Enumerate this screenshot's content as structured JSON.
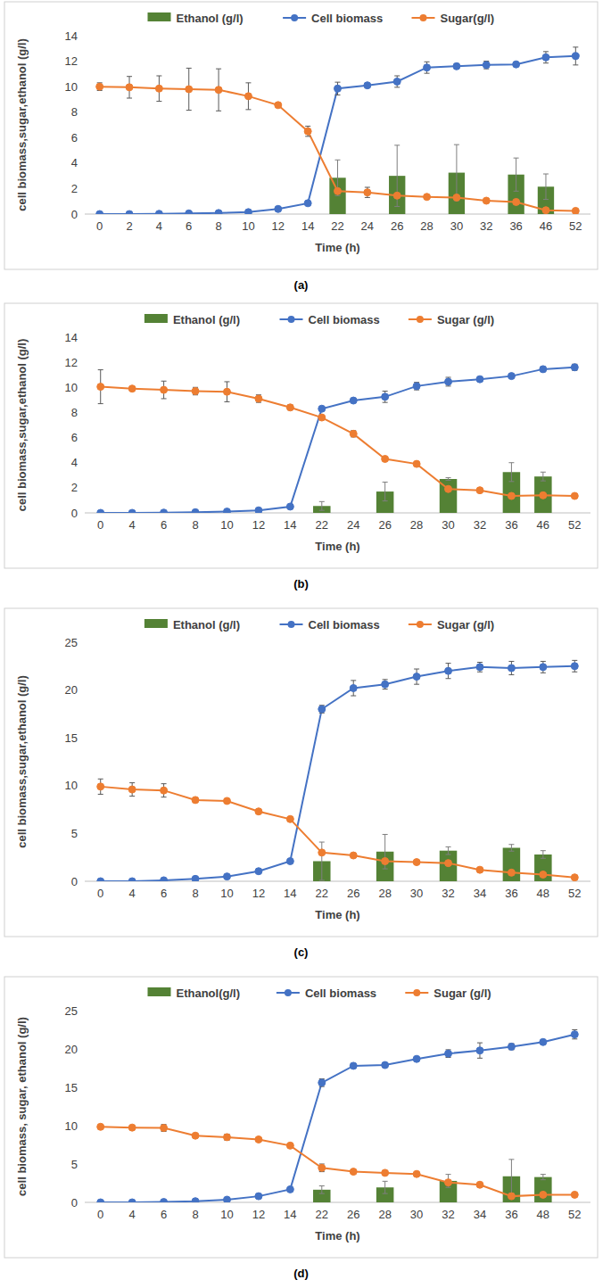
{
  "chart_data": [
    {
      "type": "line",
      "title": "(a)",
      "xlabel": "Time (h)",
      "ylabel": "cell biomass,sugar,ethanol (g/l)",
      "categories": [
        "0",
        "2",
        "4",
        "6",
        "8",
        "10",
        "12",
        "14",
        "22",
        "24",
        "26",
        "28",
        "30",
        "32",
        "36",
        "46",
        "52"
      ],
      "ylim": [
        0,
        14
      ],
      "yticks": [
        0,
        2,
        4,
        6,
        8,
        10,
        12,
        14
      ],
      "grid": false,
      "legend": "top",
      "series": [
        {
          "name": "Ethanol (g/l)",
          "type": "bar",
          "color": "#548235",
          "values": [
            null,
            null,
            null,
            null,
            null,
            null,
            null,
            null,
            2.85,
            null,
            3.0,
            null,
            3.25,
            null,
            3.1,
            2.15,
            null
          ],
          "errors": [
            null,
            null,
            null,
            null,
            null,
            null,
            null,
            null,
            1.4,
            null,
            2.4,
            null,
            2.2,
            null,
            1.3,
            1.0,
            null
          ]
        },
        {
          "name": "Cell biomass",
          "type": "line",
          "marker": "circle",
          "color": "#4472c4",
          "values": [
            0,
            0,
            0.02,
            0.05,
            0.08,
            0.15,
            0.4,
            0.85,
            9.85,
            10.1,
            10.4,
            11.5,
            11.6,
            11.7,
            11.75,
            12.3,
            12.4
          ],
          "errors": [
            0,
            0,
            0,
            0,
            0,
            0,
            0,
            0.1,
            0.5,
            0.1,
            0.45,
            0.45,
            0.2,
            0.3,
            0.1,
            0.45,
            0.7
          ]
        },
        {
          "name": "Sugar(g/l)",
          "type": "line",
          "marker": "circle",
          "color": "#ed7d31",
          "values": [
            10,
            9.95,
            9.85,
            9.8,
            9.75,
            9.25,
            8.55,
            6.5,
            1.8,
            1.7,
            1.45,
            1.35,
            1.3,
            1.05,
            0.95,
            0.3,
            0.25
          ],
          "errors": [
            0.3,
            0.85,
            1.0,
            1.65,
            1.65,
            1.05,
            0.1,
            0.4,
            0.1,
            0.4,
            0.1,
            0.1,
            0.1,
            0.1,
            0.1,
            0.1,
            0.1
          ]
        }
      ]
    },
    {
      "type": "line",
      "title": "(b)",
      "xlabel": "Time (h)",
      "ylabel": "cell biomass,sugar,ethanol  (g/l)",
      "categories": [
        "0",
        "4",
        "6",
        "8",
        "10",
        "12",
        "14",
        "22",
        "24",
        "26",
        "28",
        "30",
        "32",
        "36",
        "46",
        "52"
      ],
      "ylim": [
        0,
        14
      ],
      "yticks": [
        0,
        2,
        4,
        6,
        8,
        10,
        12,
        14
      ],
      "grid": false,
      "legend": "top",
      "series": [
        {
          "name": "Ethanol (g/l)",
          "type": "bar",
          "color": "#548235",
          "values": [
            null,
            null,
            null,
            null,
            null,
            null,
            null,
            0.55,
            null,
            1.7,
            null,
            2.7,
            null,
            3.25,
            2.9,
            null
          ],
          "errors": [
            null,
            null,
            null,
            null,
            null,
            null,
            null,
            0.35,
            null,
            0.75,
            null,
            0.1,
            null,
            0.75,
            0.35,
            null
          ]
        },
        {
          "name": "Cell biomass",
          "type": "line",
          "marker": "circle",
          "color": "#4472c4",
          "values": [
            0,
            0,
            0.02,
            0.05,
            0.1,
            0.2,
            0.5,
            8.3,
            8.95,
            9.25,
            10.1,
            10.45,
            10.65,
            10.9,
            11.45,
            11.6
          ],
          "errors": [
            0,
            0,
            0,
            0,
            0,
            0,
            0,
            0.15,
            0.1,
            0.45,
            0.3,
            0.35,
            0.1,
            0.1,
            0.2,
            0.25
          ]
        },
        {
          "name": "Sugar (g/l)",
          "type": "line",
          "marker": "circle",
          "color": "#ed7d31",
          "values": [
            10.05,
            9.9,
            9.8,
            9.7,
            9.65,
            9.1,
            8.4,
            7.6,
            6.3,
            4.3,
            3.9,
            1.9,
            1.8,
            1.35,
            1.4,
            1.35
          ],
          "errors": [
            1.35,
            0.1,
            0.7,
            0.3,
            0.8,
            0.3,
            0.2,
            0.1,
            0.25,
            0.1,
            0.1,
            0.1,
            0.1,
            0.1,
            0.1,
            0.1
          ]
        }
      ]
    },
    {
      "type": "line",
      "title": "(c)",
      "xlabel": "Time (h)",
      "ylabel": "cell biomass,sugar,ethanol   (g/l)",
      "categories": [
        "0",
        "4",
        "6",
        "8",
        "10",
        "12",
        "14",
        "22",
        "26",
        "28",
        "30",
        "32",
        "34",
        "36",
        "48",
        "52"
      ],
      "ylim": [
        0,
        25
      ],
      "yticks": [
        0,
        5,
        10,
        15,
        20,
        25
      ],
      "grid": false,
      "legend": "top",
      "series": [
        {
          "name": "Ethanol (g/l)",
          "type": "bar",
          "color": "#548235",
          "values": [
            null,
            null,
            null,
            null,
            null,
            null,
            null,
            2.1,
            null,
            3.1,
            null,
            3.2,
            null,
            3.5,
            2.8,
            null
          ],
          "errors": [
            null,
            null,
            null,
            null,
            null,
            null,
            null,
            2.0,
            null,
            1.8,
            null,
            0.4,
            null,
            0.35,
            0.4,
            null
          ]
        },
        {
          "name": "Cell biomass",
          "type": "line",
          "marker": "circle",
          "color": "#4472c4",
          "values": [
            0,
            0,
            0.1,
            0.25,
            0.5,
            1.05,
            2.1,
            18,
            20.2,
            20.6,
            21.4,
            22,
            22.4,
            22.3,
            22.4,
            22.5
          ],
          "errors": [
            0,
            0,
            0,
            0,
            0,
            0,
            0.1,
            0.4,
            0.8,
            0.5,
            0.8,
            0.8,
            0.5,
            0.7,
            0.6,
            0.6
          ]
        },
        {
          "name": "Sugar (g/l)",
          "type": "line",
          "marker": "circle",
          "color": "#ed7d31",
          "values": [
            9.9,
            9.6,
            9.5,
            8.5,
            8.4,
            7.3,
            6.5,
            3,
            2.7,
            2.1,
            2.0,
            1.9,
            1.2,
            0.9,
            0.7,
            0.4
          ],
          "errors": [
            0.8,
            0.7,
            0.7,
            0.2,
            0.2,
            0.2,
            0.2,
            0.2,
            0.2,
            0.2,
            0.2,
            0.2,
            0.2,
            0.2,
            0.2,
            0.2
          ]
        }
      ]
    },
    {
      "type": "line",
      "title": "(d)",
      "xlabel": "Time (h)",
      "ylabel": "cell biomass, sugar, ethanol (g/l)",
      "categories": [
        "0",
        "4",
        "6",
        "8",
        "10",
        "12",
        "14",
        "22",
        "26",
        "28",
        "30",
        "32",
        "34",
        "36",
        "48",
        "52"
      ],
      "ylim": [
        0,
        25
      ],
      "yticks": [
        0,
        5,
        10,
        15,
        20,
        25
      ],
      "grid": false,
      "legend": "top",
      "series": [
        {
          "name": "Ethanol(g/l)",
          "type": "bar",
          "color": "#548235",
          "values": [
            null,
            null,
            null,
            null,
            null,
            null,
            null,
            1.65,
            null,
            1.95,
            null,
            2.8,
            null,
            3.4,
            3.3,
            null
          ],
          "errors": [
            null,
            null,
            null,
            null,
            null,
            null,
            null,
            0.5,
            null,
            0.8,
            null,
            0.85,
            null,
            2.2,
            0.35,
            null
          ]
        },
        {
          "name": "Cell biomass",
          "type": "line",
          "marker": "circle",
          "color": "#4472c4",
          "values": [
            0,
            0,
            0.05,
            0.15,
            0.35,
            0.8,
            1.7,
            15.6,
            17.8,
            17.9,
            18.7,
            19.4,
            19.8,
            20.3,
            20.9,
            21.9
          ],
          "errors": [
            0,
            0,
            0,
            0,
            0,
            0,
            0,
            0.5,
            0.3,
            0.2,
            0.2,
            0.5,
            1.0,
            0.4,
            0.2,
            0.6
          ]
        },
        {
          "name": "Sugar (g/l)",
          "type": "line",
          "marker": "circle",
          "color": "#ed7d31",
          "values": [
            9.85,
            9.75,
            9.7,
            8.7,
            8.5,
            8.2,
            7.4,
            4.5,
            4.0,
            3.85,
            3.7,
            2.6,
            2.3,
            0.8,
            1.0,
            1.0
          ],
          "errors": [
            0.2,
            0.2,
            0.45,
            0.2,
            0.4,
            0.2,
            0.2,
            0.5,
            0.2,
            0.2,
            0.2,
            0.2,
            0.2,
            0.3,
            0.2,
            0.2
          ]
        }
      ]
    }
  ]
}
